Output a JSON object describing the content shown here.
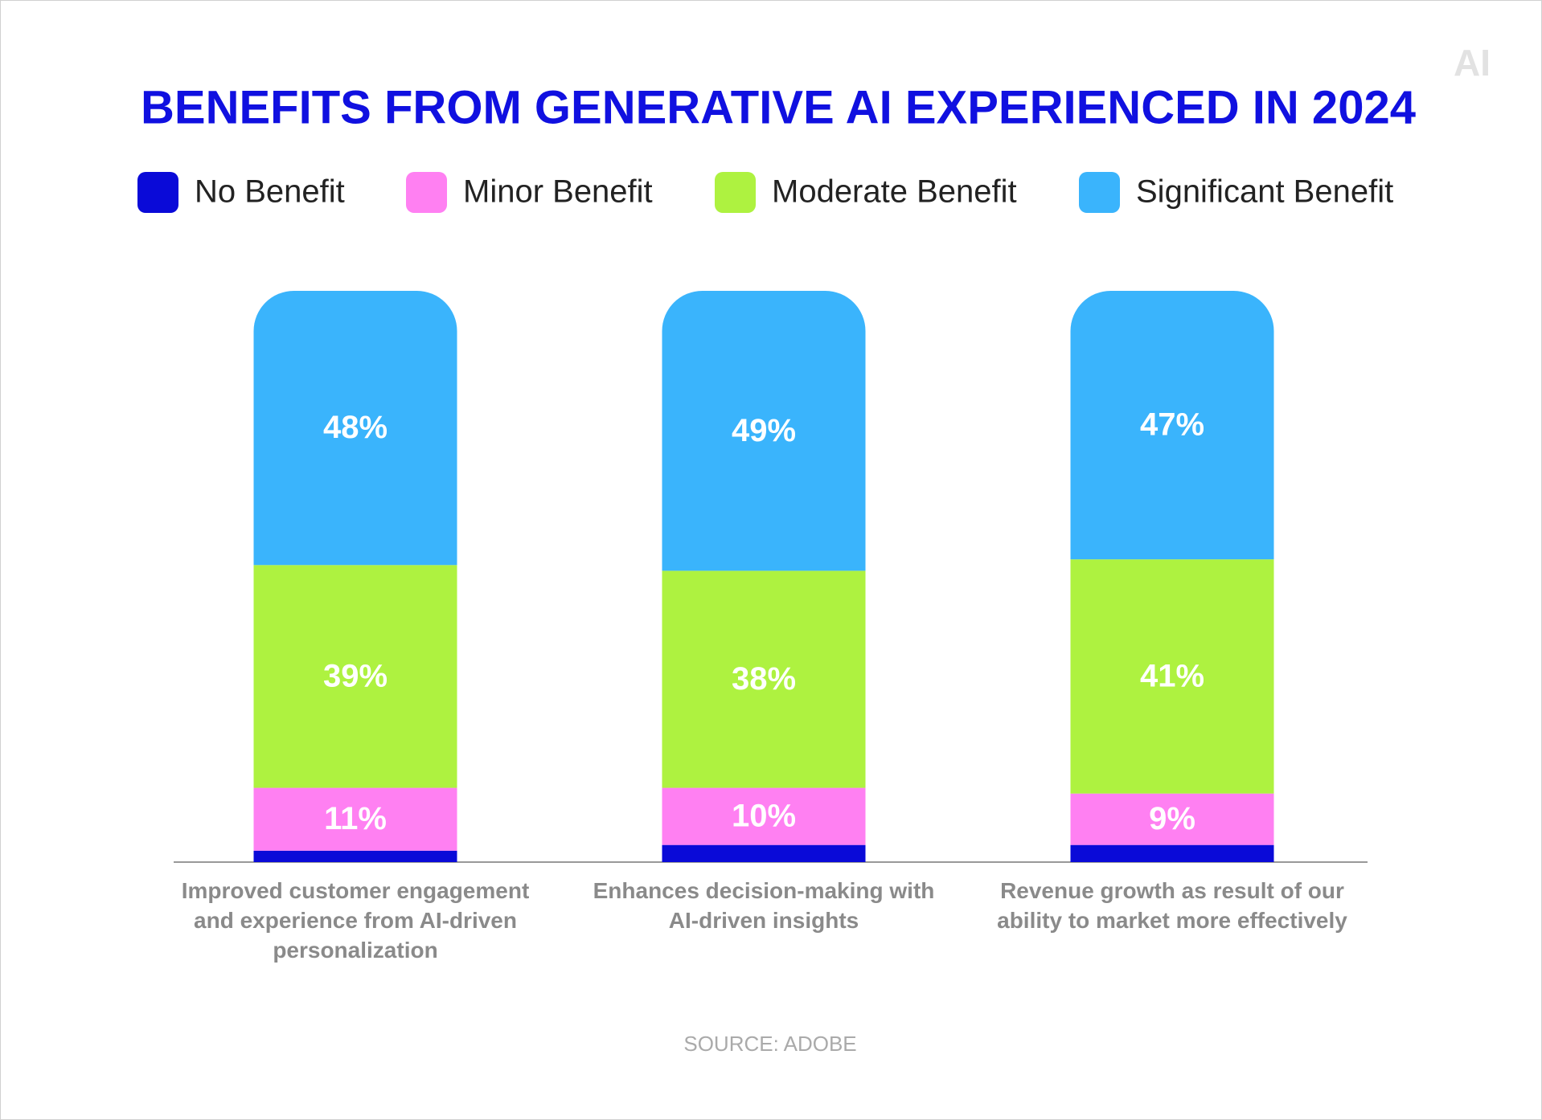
{
  "chart_data": {
    "type": "stacked_bar",
    "title": "BENEFITS FROM GENERATIVE AI EXPERIENCED IN 2024",
    "logo": "AI",
    "source": "SOURCE: ADOBE",
    "categories": [
      "Improved customer engagement and experience from AI-driven personalization",
      "Enhances decision-making with AI-driven insights",
      "Revenue growth as result of our ability to market more effectively"
    ],
    "series": [
      {
        "name": "No Benefit",
        "color": "#0a0ad8",
        "values": [
          2,
          3,
          3
        ]
      },
      {
        "name": "Minor Benefit",
        "color": "#ff80f2",
        "values": [
          11,
          10,
          9
        ],
        "value_labels": [
          "11%",
          "10%",
          "9%"
        ]
      },
      {
        "name": "Moderate Benefit",
        "color": "#aef240",
        "values": [
          39,
          38,
          41
        ],
        "value_labels": [
          "39%",
          "38%",
          "41%"
        ]
      },
      {
        "name": "Significant Benefit",
        "color": "#3ab4fc",
        "values": [
          48,
          49,
          47
        ],
        "value_labels": [
          "48%",
          "49%",
          "47%"
        ]
      }
    ],
    "ylim": [
      0,
      100
    ]
  }
}
